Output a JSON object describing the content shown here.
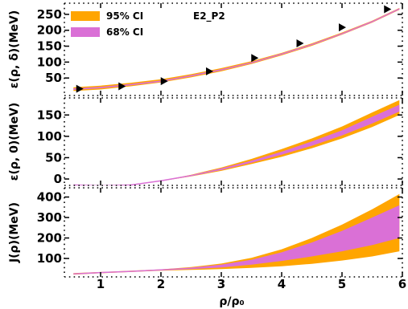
{
  "chart_data": {
    "type": "area",
    "colors": {
      "ci95": "#ffa500",
      "ci68": "#da70d6",
      "line": "#da70d6",
      "markers": "#000000"
    },
    "legend": {
      "placement": "top-left",
      "items": [
        "95% CI",
        "68% CI"
      ],
      "annotation": "E2_P2"
    },
    "shared_x": {
      "label": "ρ/ρ₀",
      "range": [
        0.4,
        6.0
      ],
      "ticks": [
        1,
        2,
        3,
        4,
        5,
        6
      ],
      "tick_labels": [
        "1",
        "2",
        "3",
        "4",
        "5",
        "6"
      ],
      "minor_ticks": true
    },
    "panels": [
      {
        "ylabel": "ε(ρ, δ)(MeV)",
        "ylim": [
          -5,
          285
        ],
        "yticks": [
          50,
          100,
          150,
          200,
          250
        ],
        "ytick_labels": [
          "50",
          "100",
          "150",
          "200",
          "250"
        ],
        "band_x": [
          0.55,
          1.0,
          1.5,
          2.0,
          2.5,
          3.0,
          3.5,
          4.0,
          4.5,
          5.0,
          5.5,
          5.95
        ],
        "ci95_upper": [
          21,
          26,
          35,
          46,
          62,
          81,
          103,
          129,
          159,
          193,
          230,
          270
        ],
        "ci95_lower": [
          9,
          14,
          24,
          36,
          52,
          71,
          94,
          121,
          151,
          186,
          224,
          264
        ],
        "ci68_upper": [
          17,
          22,
          31,
          42,
          58,
          77,
          99,
          126,
          156,
          190,
          228,
          268
        ],
        "ci68_lower": [
          13,
          18,
          27,
          39,
          55,
          74,
          97,
          124,
          154,
          188,
          226,
          266
        ],
        "line": [
          15,
          20,
          29,
          40,
          57,
          76,
          98,
          125,
          155,
          189,
          227,
          267
        ],
        "markers": {
          "x": [
            0.65,
            1.35,
            2.05,
            2.8,
            3.55,
            4.3,
            5.0,
            5.75
          ],
          "y": [
            16,
            24,
            40,
            71,
            113,
            159,
            209,
            266
          ]
        }
      },
      {
        "ylabel": "ε(ρ, 0)(MeV)",
        "ylim": [
          -15,
          190
        ],
        "yticks": [
          0,
          50,
          100,
          150
        ],
        "ytick_labels": [
          "0",
          "50",
          "100",
          "150"
        ],
        "band_x": [
          0.55,
          1.0,
          1.5,
          2.0,
          2.5,
          3.0,
          3.5,
          4.0,
          4.5,
          5.0,
          5.5,
          5.95
        ],
        "ci95_upper": [
          -14,
          -16,
          -14,
          -4,
          10,
          27,
          47,
          70,
          95,
          123,
          156,
          185
        ],
        "ci95_lower": [
          -14,
          -16,
          -14,
          -5,
          6,
          19,
          35,
          52,
          72,
          95,
          122,
          150
        ],
        "ci68_upper": [
          -14,
          -16,
          -14,
          -4,
          9,
          25,
          43,
          64,
          88,
          114,
          146,
          174
        ],
        "ci68_lower": [
          -14,
          -16,
          -14,
          -5,
          7,
          21,
          38,
          57,
          78,
          102,
          130,
          158
        ],
        "line": [
          -14,
          -16,
          -14,
          -4,
          8,
          23,
          41,
          61,
          83,
          108,
          138,
          166
        ]
      },
      {
        "ylabel": "J(ρ)(MeV)",
        "ylim": [
          10,
          445
        ],
        "yticks": [
          100,
          200,
          300,
          400
        ],
        "ytick_labels": [
          "100",
          "200",
          "300",
          "400"
        ],
        "band_x": [
          0.55,
          1.0,
          1.5,
          2.0,
          2.5,
          3.0,
          3.5,
          4.0,
          4.5,
          5.0,
          5.5,
          5.95
        ],
        "ci95_upper": [
          29,
          34,
          40,
          47,
          58,
          75,
          103,
          145,
          200,
          265,
          340,
          415
        ],
        "ci95_lower": [
          21,
          28,
          34,
          40,
          44,
          48,
          54,
          62,
          74,
          90,
          110,
          135
        ],
        "ci68_upper": [
          27,
          33,
          38,
          45,
          55,
          70,
          94,
          130,
          178,
          235,
          300,
          360
        ],
        "ci68_lower": [
          23,
          29,
          36,
          42,
          48,
          56,
          70,
          88,
          110,
          135,
          165,
          200
        ],
        "line": [
          25,
          31,
          37,
          44,
          52,
          63,
          82,
          109,
          144,
          185,
          232,
          280
        ]
      }
    ]
  }
}
